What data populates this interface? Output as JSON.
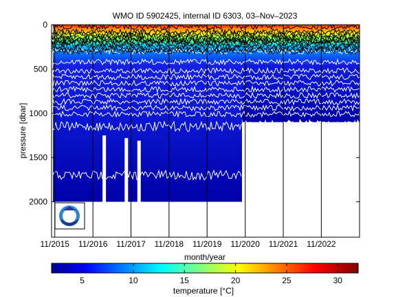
{
  "chart_data": {
    "type": "heatmap",
    "title": "WMO ID 5902425, internal ID 6303, 03–Nov–2023",
    "xlabel": "month/year",
    "ylabel": "pressure [dbar]",
    "xlim": [
      "2015-10-01",
      "2023-11-03"
    ],
    "ylim": [
      2400,
      0
    ],
    "y_ticks": [
      0,
      500,
      1000,
      1500,
      2000
    ],
    "x_ticks": [
      "11/2015",
      "11/2016",
      "11/2017",
      "11/2018",
      "11/2019",
      "11/2020",
      "11/2021",
      "11/2022"
    ],
    "profile_max_pressure": [
      {
        "from": "2015-10-15",
        "to": "2020-10-01",
        "max": 2000
      },
      {
        "from": "2020-10-01",
        "to": "2023-11-01",
        "max": 1100
      }
    ],
    "gaps_in_profiles": [
      "2017-02",
      "2017-09",
      "2018-01"
    ],
    "colorbar": {
      "label": "temperature [°C]",
      "range": [
        2,
        32
      ],
      "ticks": [
        5,
        10,
        15,
        20,
        25,
        30
      ],
      "colormap": "jet"
    },
    "approx_isotherm_depths": [
      {
        "temp": 30,
        "pressure": 20
      },
      {
        "temp": 25,
        "pressure": 80
      },
      {
        "temp": 20,
        "pressure": 180
      },
      {
        "temp": 15,
        "pressure": 300
      },
      {
        "temp": 10,
        "pressure": 420
      },
      {
        "temp": 5,
        "pressure": 1150
      },
      {
        "temp": 3,
        "pressure": 1700
      }
    ],
    "grid": false,
    "logo": "NOAA"
  }
}
